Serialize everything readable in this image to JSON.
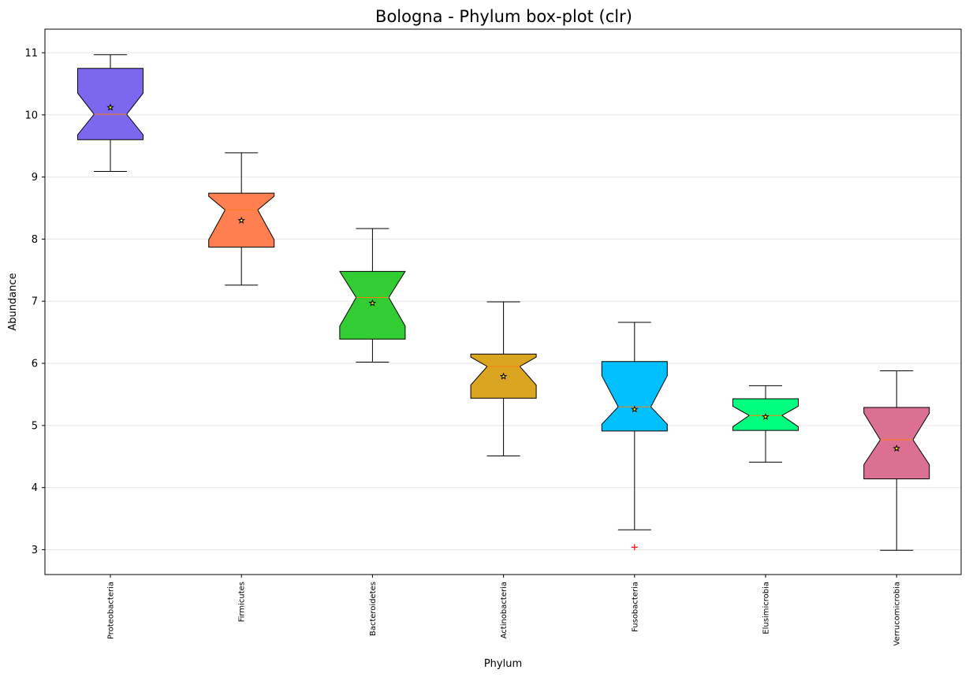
{
  "chart_data": {
    "type": "box",
    "title": "Bologna - Phylum box-plot (clr)",
    "xlabel": "Phylum",
    "ylabel": "Abundance",
    "ylim": [
      2.6,
      11.38
    ],
    "yticks": [
      "3",
      "4",
      "5",
      "6",
      "7",
      "8",
      "9",
      "10",
      "11"
    ],
    "grid": "horizontal",
    "notched": true,
    "categories": [
      "Proteobacteria",
      "Firmicutes",
      "Bacteroidetes",
      "Actinobacteria",
      "Fusobacteria",
      "Elusimicrobia",
      "Verrucomicrobia"
    ],
    "series": [
      {
        "whisker_low": 9.09,
        "q1": 9.6,
        "median": 10.01,
        "q3": 10.75,
        "whisker_high": 10.97,
        "notch_low": 9.68,
        "notch_high": 10.35,
        "mean": 10.12,
        "outliers": [],
        "color": "#7b68ee"
      },
      {
        "whisker_low": 7.26,
        "q1": 7.87,
        "median": 8.47,
        "q3": 8.74,
        "whisker_high": 9.39,
        "notch_low": 7.99,
        "notch_high": 8.69,
        "mean": 8.3,
        "outliers": [],
        "color": "#ff7f50"
      },
      {
        "whisker_low": 6.02,
        "q1": 6.39,
        "median": 7.06,
        "q3": 7.48,
        "whisker_high": 8.17,
        "notch_low": 6.6,
        "notch_high": 7.48,
        "mean": 6.97,
        "outliers": [],
        "color": "#32cd32"
      },
      {
        "whisker_low": 4.51,
        "q1": 5.44,
        "median": 5.95,
        "q3": 6.15,
        "whisker_high": 6.99,
        "notch_low": 5.65,
        "notch_high": 6.1,
        "mean": 5.79,
        "outliers": [],
        "color": "#daa520"
      },
      {
        "whisker_low": 3.32,
        "q1": 4.91,
        "median": 5.3,
        "q3": 6.03,
        "whisker_high": 6.66,
        "notch_low": 5.02,
        "notch_high": 5.8,
        "mean": 5.26,
        "outliers": [
          3.04
        ],
        "color": "#00bfff"
      },
      {
        "whisker_low": 4.41,
        "q1": 4.92,
        "median": 5.16,
        "q3": 5.43,
        "whisker_high": 5.64,
        "notch_low": 4.98,
        "notch_high": 5.31,
        "mean": 5.14,
        "outliers": [],
        "color": "#00ff7f"
      },
      {
        "whisker_low": 2.99,
        "q1": 4.14,
        "median": 4.77,
        "q3": 5.29,
        "whisker_high": 5.88,
        "notch_low": 4.37,
        "notch_high": 5.2,
        "mean": 4.63,
        "outliers": [],
        "color": "#db7093"
      }
    ],
    "median_color": "#ff7f0e",
    "outlier_color": "#ff0000"
  }
}
